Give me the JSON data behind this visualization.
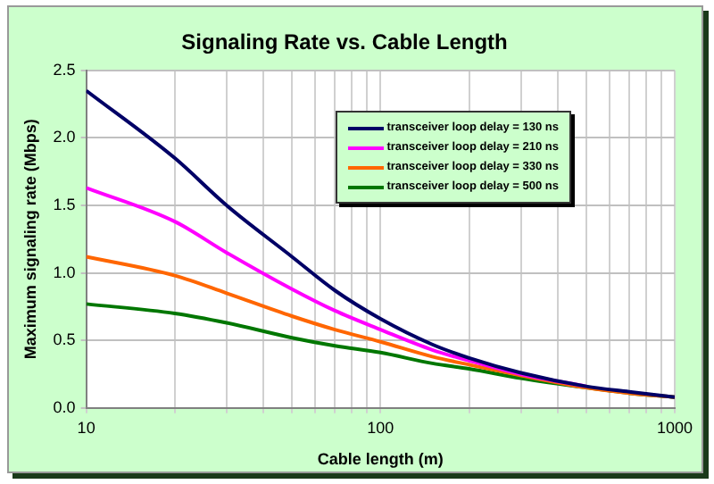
{
  "chart_data": {
    "type": "line",
    "title": "Signaling Rate vs. Cable Length",
    "xlabel": "Cable length (m)",
    "ylabel": "Maximum signaling rate (Mbps)",
    "x": [
      10,
      20,
      30,
      50,
      70,
      100,
      150,
      200,
      300,
      500,
      700,
      1000
    ],
    "series": [
      {
        "name": "transceiver loop delay = 130 ns",
        "color": "#000066",
        "values": [
          2.35,
          1.85,
          1.5,
          1.12,
          0.87,
          0.66,
          0.47,
          0.37,
          0.26,
          0.16,
          0.12,
          0.08
        ]
      },
      {
        "name": "transceiver loop delay = 210 ns",
        "color": "#ff00ff",
        "values": [
          1.63,
          1.38,
          1.15,
          0.88,
          0.72,
          0.58,
          0.43,
          0.35,
          0.25,
          0.16,
          null,
          null
        ]
      },
      {
        "name": "transceiver loop delay = 330 ns",
        "color": "#ff6600",
        "values": [
          1.12,
          0.98,
          0.85,
          0.68,
          0.58,
          0.49,
          0.38,
          0.32,
          0.24,
          0.15,
          0.11,
          0.08
        ]
      },
      {
        "name": "transceiver loop delay = 500 ns",
        "color": "#007700",
        "values": [
          0.77,
          0.7,
          0.63,
          0.52,
          0.46,
          0.41,
          0.33,
          0.29,
          0.22,
          0.15,
          0.11,
          0.08
        ]
      }
    ],
    "log": "x",
    "xlim": [
      10,
      1000
    ],
    "xticks": [
      10,
      {
        "value": 20,
        "label": null
      },
      {
        "value": 30,
        "label": null
      },
      {
        "value": 40,
        "label": null
      },
      {
        "value": 50,
        "label": null
      },
      {
        "value": 60,
        "label": null
      },
      {
        "value": 70,
        "label": null
      },
      {
        "value": 80,
        "label": null
      },
      {
        "value": 90,
        "label": null
      },
      100,
      {
        "value": 200,
        "label": null
      },
      {
        "value": 300,
        "label": null
      },
      {
        "value": 400,
        "label": null
      },
      {
        "value": 500,
        "label": null
      },
      {
        "value": 600,
        "label": null
      },
      {
        "value": 700,
        "label": null
      },
      {
        "value": 800,
        "label": null
      },
      {
        "value": 900,
        "label": null
      },
      1000
    ],
    "ylim": [
      0,
      2.5
    ],
    "yticks": [
      {
        "value": 0,
        "label": "0.0"
      },
      0.5,
      {
        "value": 1,
        "label": "1.0"
      },
      1.5,
      {
        "value": 2,
        "label": "2.0"
      },
      2.5
    ],
    "grid": true,
    "legend": "top right",
    "marker": "none",
    "line_style": "solid"
  }
}
